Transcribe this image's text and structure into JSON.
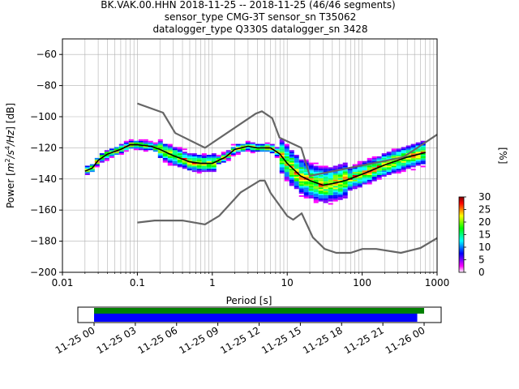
{
  "header": {
    "title_lines": [
      "BK.VAK.00.HHN   2018-11-25 -- 2018-11-25  (46/46 segments)",
      "sensor_type CMG-3T sensor_sn T35062",
      "datalogger_type Q330S datalogger_sn 3428"
    ]
  },
  "chart_data": {
    "type": "heatmap",
    "xlabel": "Period [s]",
    "ylabel_main": "Power [",
    "ylabel_unit_html": "m²/s⁴/Hz",
    "ylabel_units_parts": [
      "m",
      "2",
      "/s",
      "4",
      "/Hz",
      "] [dB]"
    ],
    "xscale": "log",
    "xlim": [
      0.01,
      1000
    ],
    "ylim": [
      -200,
      -50
    ],
    "x_ticks": [
      {
        "value": 0.01,
        "label": "0.01"
      },
      {
        "value": 0.1,
        "label": "0.1"
      },
      {
        "value": 1,
        "label": "1"
      },
      {
        "value": 10,
        "label": "10"
      },
      {
        "value": 100,
        "label": "100"
      },
      {
        "value": 1000,
        "label": "1000"
      }
    ],
    "y_ticks": [
      {
        "value": -60,
        "label": "−60"
      },
      {
        "value": -80,
        "label": "−80"
      },
      {
        "value": -100,
        "label": "−100"
      },
      {
        "value": -120,
        "label": "−120"
      },
      {
        "value": -140,
        "label": "−140"
      },
      {
        "value": -160,
        "label": "−160"
      },
      {
        "value": -180,
        "label": "−180"
      },
      {
        "value": -200,
        "label": "−200"
      }
    ],
    "grid": true,
    "colorbar": {
      "label": "[%]",
      "range": [
        0,
        30
      ],
      "ticks": [
        {
          "value": 0,
          "label": "0"
        },
        {
          "value": 5,
          "label": "5"
        },
        {
          "value": 10,
          "label": "10"
        },
        {
          "value": 15,
          "label": "15"
        },
        {
          "value": 20,
          "label": "20"
        },
        {
          "value": 25,
          "label": "25"
        },
        {
          "value": 30,
          "label": "30"
        }
      ],
      "colormap": [
        "#ffffff",
        "#ff00ff",
        "#7b00ff",
        "#0000ff",
        "#0080ff",
        "#00ffff",
        "#00ff80",
        "#00ff00",
        "#80ff00",
        "#ffff00",
        "#ff8000",
        "#ff0000",
        "#800000"
      ]
    },
    "noise_model_high": [
      [
        0.1,
        -91.5
      ],
      [
        0.22,
        -97.4
      ],
      [
        0.32,
        -110.5
      ],
      [
        0.8,
        -120.0
      ],
      [
        3.8,
        -98.0
      ],
      [
        4.6,
        -96.5
      ],
      [
        6.3,
        -101.0
      ],
      [
        7.9,
        -113.5
      ],
      [
        15.4,
        -120.0
      ],
      [
        20,
        -138.0
      ],
      [
        354.8,
        -126.0
      ],
      [
        1000,
        -111.5
      ]
    ],
    "noise_model_low": [
      [
        0.1,
        -168.0
      ],
      [
        0.17,
        -166.7
      ],
      [
        0.4,
        -166.7
      ],
      [
        0.8,
        -169.2
      ],
      [
        1.24,
        -163.7
      ],
      [
        2.4,
        -148.6
      ],
      [
        4.3,
        -141.1
      ],
      [
        5.0,
        -141.1
      ],
      [
        6.0,
        -149.0
      ],
      [
        10.0,
        -163.8
      ],
      [
        12.0,
        -166.2
      ],
      [
        15.6,
        -162.1
      ],
      [
        21.9,
        -177.5
      ],
      [
        31.6,
        -185.0
      ],
      [
        45,
        -187.5
      ],
      [
        70,
        -187.5
      ],
      [
        101,
        -185.0
      ],
      [
        154,
        -185.0
      ],
      [
        328,
        -187.5
      ],
      [
        600,
        -184.4
      ],
      [
        1000,
        -178.0
      ]
    ],
    "mode_curve": [
      [
        0.02,
        -135
      ],
      [
        0.025,
        -133
      ],
      [
        0.03,
        -128
      ],
      [
        0.04,
        -124
      ],
      [
        0.06,
        -121
      ],
      [
        0.08,
        -118
      ],
      [
        0.1,
        -118
      ],
      [
        0.15,
        -119
      ],
      [
        0.2,
        -121
      ],
      [
        0.3,
        -125
      ],
      [
        0.5,
        -129
      ],
      [
        0.7,
        -130
      ],
      [
        1.0,
        -130
      ],
      [
        1.5,
        -126
      ],
      [
        2.0,
        -121
      ],
      [
        3.0,
        -119
      ],
      [
        4.0,
        -120
      ],
      [
        6.0,
        -120
      ],
      [
        8.0,
        -124
      ],
      [
        10,
        -130
      ],
      [
        15,
        -138
      ],
      [
        20,
        -141
      ],
      [
        30,
        -144
      ],
      [
        40,
        -143
      ],
      [
        60,
        -141
      ],
      [
        100,
        -137
      ],
      [
        200,
        -131
      ],
      [
        400,
        -126
      ],
      [
        700,
        -123
      ]
    ],
    "time_bar": {
      "tick_labels": [
        "11-25 00",
        "11-25 03",
        "11-25 06",
        "11-25 09",
        "11-25 12",
        "11-25 15",
        "11-25 18",
        "11-25 21",
        "11-26 00"
      ],
      "range_hours": [
        0,
        24
      ],
      "coverage_green_hours": [
        0,
        24
      ],
      "coverage_blue_hours": [
        0,
        23.5
      ],
      "colors": {
        "green": "#008000",
        "blue": "#0000ff"
      }
    },
    "colors": {
      "grid": "#b0b0b0",
      "noise_model": "#666666",
      "mode": "#000000"
    }
  }
}
